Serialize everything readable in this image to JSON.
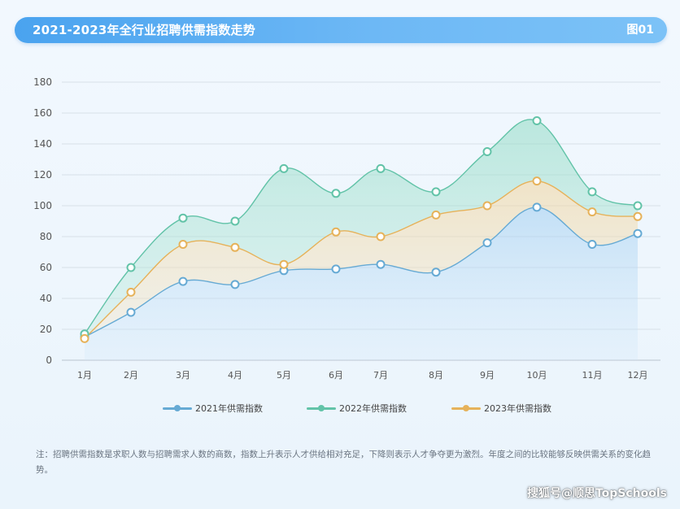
{
  "header": {
    "title": "2021-2023年全行业招聘供需指数走势",
    "figure_no": "图01"
  },
  "chart_data": {
    "type": "line",
    "categories": [
      "1月",
      "2月",
      "3月",
      "4月",
      "5月",
      "6月",
      "7月",
      "8月",
      "9月",
      "10月",
      "11月",
      "12月"
    ],
    "ylim": [
      0,
      180
    ],
    "yticks": [
      0,
      20,
      40,
      60,
      80,
      100,
      120,
      140,
      160,
      180
    ],
    "grid": true,
    "legend_position": "bottom",
    "series": [
      {
        "name": "2021年供需指数",
        "color": "#66aad4",
        "values": [
          15,
          31,
          51,
          49,
          58,
          59,
          62,
          57,
          76,
          99,
          75,
          82
        ]
      },
      {
        "name": "2022年供需指数",
        "color": "#62c3a8",
        "values": [
          17,
          60,
          92,
          90,
          124,
          108,
          124,
          109,
          135,
          155,
          109,
          100
        ]
      },
      {
        "name": "2023年供需指数",
        "color": "#e6b25a",
        "values": [
          14,
          44,
          75,
          73,
          62,
          83,
          80,
          94,
          100,
          116,
          96,
          93
        ]
      }
    ]
  },
  "note": "注：招聘供需指数是求职人数与招聘需求人数的商数，指数上升表示人才供给相对充足，下降则表示人才争夺更为激烈。年度之间的比较能够反映供需关系的变化趋势。",
  "watermark": "搜狐号@顺思TopSchools"
}
